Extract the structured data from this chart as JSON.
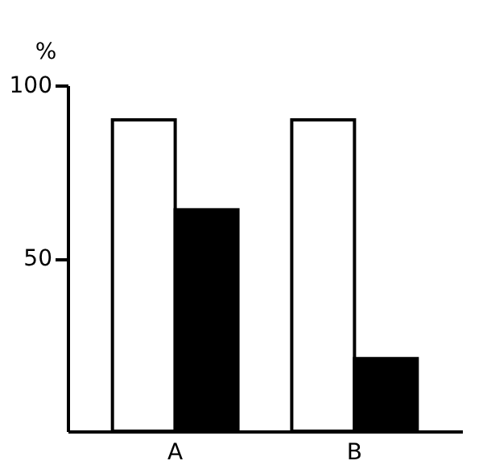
{
  "chart_data": {
    "type": "bar",
    "ylabel": "%",
    "categories": [
      "A",
      "B"
    ],
    "series": [
      {
        "color": "#ffffff",
        "values": [
          90,
          90
        ]
      },
      {
        "color": "#000000",
        "values": [
          64,
          21
        ]
      }
    ],
    "ylim": [
      0,
      100
    ],
    "yticks": [
      50,
      100
    ],
    "grid": false,
    "legend": false
  }
}
